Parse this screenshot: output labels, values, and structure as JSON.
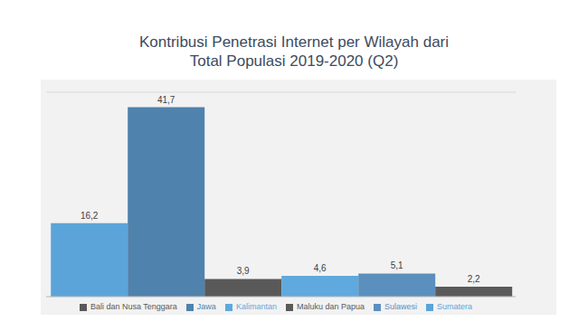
{
  "chart_data": {
    "type": "bar",
    "title": "Kontribusi Penetrasi Internet per Wilayah dari Total Populasi 2019-2020 (Q2)",
    "categories": [
      null
    ],
    "series": [
      {
        "name": "Sumatera",
        "color": "#5ba4d9",
        "values": [
          16.2
        ],
        "value_labels": [
          "16,2"
        ]
      },
      {
        "name": "Jawa",
        "color": "#4f82ad",
        "values": [
          41.7
        ],
        "value_labels": [
          "41,7"
        ]
      },
      {
        "name": "Bali dan Nusa Tenggara",
        "color": "#595959",
        "values": [
          3.9
        ],
        "value_labels": [
          "3,9"
        ]
      },
      {
        "name": "Kalimantan",
        "color": "#5fa9de",
        "values": [
          4.6
        ],
        "value_labels": [
          "4,6"
        ]
      },
      {
        "name": "Sulawesi",
        "color": "#5b8fbd",
        "values": [
          5.1
        ],
        "value_labels": [
          "5,1"
        ]
      },
      {
        "name": "Maluku dan Papua",
        "color": "#5a5a5a",
        "values": [
          2.2
        ],
        "value_labels": [
          "2,2"
        ]
      }
    ],
    "ylim": [
      0,
      45
    ],
    "yticks": [
      0,
      5,
      10,
      15,
      20,
      25,
      30,
      35,
      40,
      45
    ],
    "grid": true,
    "legend": "bottom",
    "data_labels": true,
    "tick_labels": false
  }
}
